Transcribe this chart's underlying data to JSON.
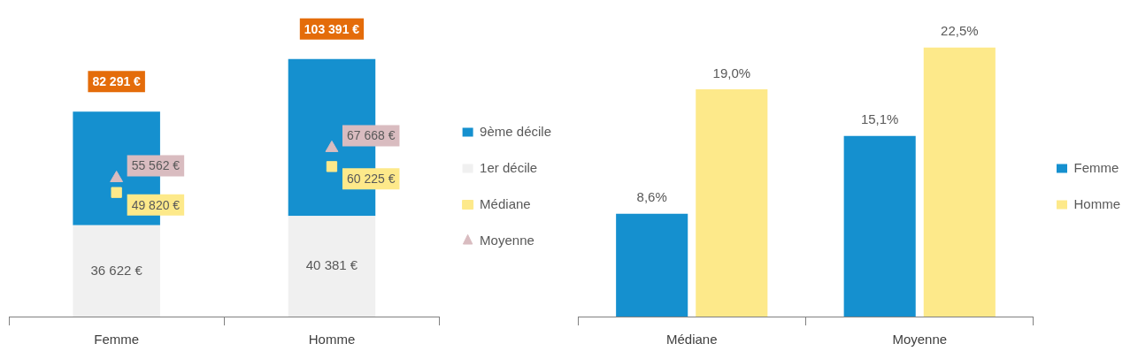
{
  "chart_data": [
    {
      "type": "bar",
      "categories": [
        "Femme",
        "Homme"
      ],
      "stacked": true,
      "legend": "right",
      "tick_labels": "x",
      "series": [
        {
          "name": "1er décile",
          "color": "#f0f0f0",
          "values": [
            36622,
            40381
          ],
          "value_labels": [
            "36 622 €",
            "40 381 €"
          ]
        },
        {
          "name": "9ème décile",
          "color": "#1590cf",
          "values": [
            45669,
            63010
          ]
        },
        {
          "name": "Médiane",
          "type": "scatter",
          "marker": "square",
          "color": "#fde98a",
          "x": [
            "Femme",
            "Homme"
          ],
          "values": [
            49820,
            60225
          ],
          "value_labels": [
            "49 820 €",
            "60 225 €"
          ]
        },
        {
          "name": "Moyenne",
          "type": "scatter",
          "marker": "triangle",
          "color": "#d9bcc0",
          "x": [
            "Femme",
            "Homme"
          ],
          "values": [
            55562,
            67668
          ],
          "value_labels": [
            "55 562 €",
            "67 668 €"
          ]
        }
      ],
      "totals": [
        "82 291 €",
        "103 391 €"
      ]
    },
    {
      "type": "bar",
      "categories": [
        "Médiane",
        "Moyenne"
      ],
      "legend": "right",
      "tick_labels": "x",
      "series": [
        {
          "name": "Femme",
          "color": "#1590cf",
          "values": [
            8.6,
            15.1
          ],
          "value_labels": [
            "8,6%",
            "15,1%"
          ]
        },
        {
          "name": "Homme",
          "color": "#fde98a",
          "values": [
            19.0,
            22.5
          ],
          "value_labels": [
            "19,0%",
            "22,5%"
          ]
        }
      ]
    }
  ]
}
